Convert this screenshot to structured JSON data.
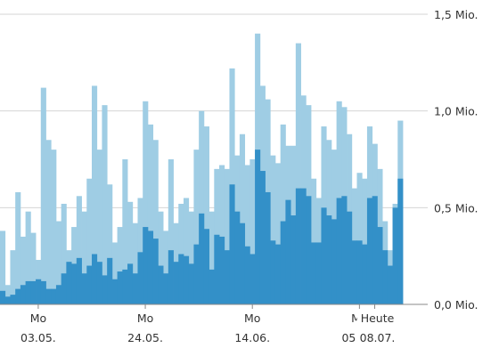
{
  "chart_data": {
    "type": "bar",
    "stacked_overlay": true,
    "ylim": [
      0,
      1.5
    ],
    "y_ticks": [
      {
        "value": 0.0,
        "label": "0,0 Mio."
      },
      {
        "value": 0.5,
        "label": "0,5 Mio."
      },
      {
        "value": 1.0,
        "label": "1,0 Mio."
      },
      {
        "value": 1.5,
        "label": "1,5 Mio."
      }
    ],
    "x_ticks": [
      {
        "index": 7,
        "weekday": "Mo",
        "date": "03.05."
      },
      {
        "index": 28,
        "weekday": "Mo",
        "date": "24.05."
      },
      {
        "index": 49,
        "weekday": "Mo",
        "date": "14.06."
      },
      {
        "index": 70,
        "weekday": "Mo",
        "date": "05.07."
      }
    ],
    "today_label": {
      "index": 73,
      "line1": "Heute",
      "line2": "08.07."
    },
    "colors": {
      "total": "#9fcde4",
      "part": "#3390c8",
      "grid": "#d6d6d6",
      "text": "#333333"
    },
    "series": [
      {
        "values": [
          0.38,
          0.1,
          0.28,
          0.58,
          0.35,
          0.48,
          0.37,
          0.23,
          1.12,
          0.85,
          0.8,
          0.43,
          0.52,
          0.28,
          0.4,
          0.56,
          0.48,
          0.65,
          1.13,
          0.8,
          1.03,
          0.62,
          0.32,
          0.4,
          0.75,
          0.53,
          0.42,
          0.55,
          1.05,
          0.93,
          0.85,
          0.48,
          0.38,
          0.75,
          0.42,
          0.52,
          0.55,
          0.48,
          0.8,
          1.0,
          0.92,
          0.48,
          0.7,
          0.72,
          0.7,
          1.22,
          0.77,
          0.88,
          0.72,
          0.75,
          1.4,
          1.13,
          1.06,
          0.77,
          0.73,
          0.93,
          0.82,
          0.82,
          1.35,
          1.08,
          1.03,
          0.65,
          0.55,
          0.92,
          0.85,
          0.8,
          1.05,
          1.02,
          0.88,
          0.6,
          0.68,
          0.65,
          0.92,
          0.83,
          0.7,
          0.43,
          0.28,
          0.52,
          0.95
        ]
      },
      {
        "values": [
          0.07,
          0.04,
          0.05,
          0.08,
          0.1,
          0.12,
          0.12,
          0.13,
          0.12,
          0.08,
          0.08,
          0.1,
          0.16,
          0.22,
          0.21,
          0.24,
          0.16,
          0.2,
          0.26,
          0.22,
          0.15,
          0.24,
          0.13,
          0.17,
          0.18,
          0.21,
          0.16,
          0.27,
          0.4,
          0.38,
          0.34,
          0.2,
          0.16,
          0.28,
          0.22,
          0.26,
          0.25,
          0.21,
          0.31,
          0.47,
          0.39,
          0.18,
          0.36,
          0.35,
          0.28,
          0.62,
          0.48,
          0.42,
          0.3,
          0.26,
          0.8,
          0.69,
          0.58,
          0.33,
          0.31,
          0.43,
          0.54,
          0.46,
          0.6,
          0.6,
          0.56,
          0.32,
          0.32,
          0.5,
          0.46,
          0.44,
          0.55,
          0.56,
          0.48,
          0.33,
          0.33,
          0.31,
          0.55,
          0.56,
          0.4,
          0.28,
          0.2,
          0.5,
          0.65
        ]
      }
    ]
  }
}
